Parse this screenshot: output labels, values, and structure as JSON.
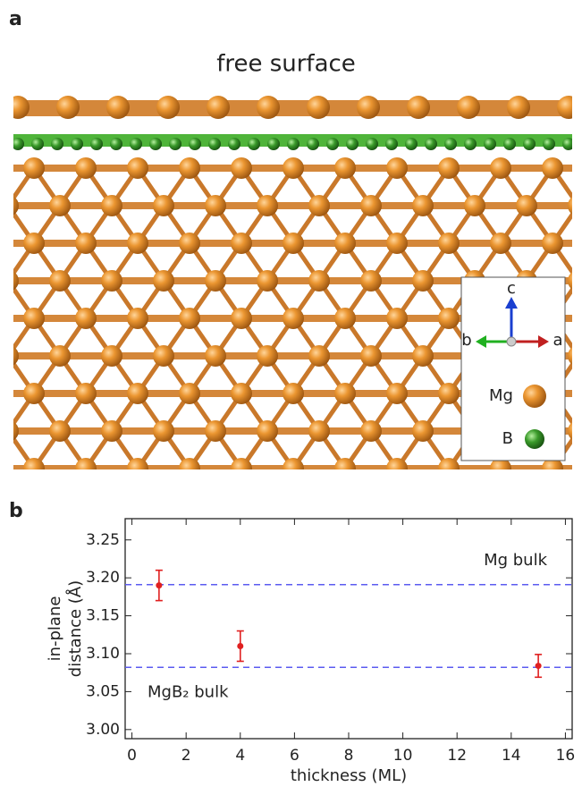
{
  "panel_a": {
    "label": "a",
    "title": "free surface",
    "axes": {
      "c": "c",
      "b": "b",
      "a": "a"
    },
    "legend": [
      {
        "name": "Mg",
        "color": "#e8902a"
      },
      {
        "name": "B",
        "color": "#3a9a2a"
      }
    ]
  },
  "chart_data": {
    "type": "scatter",
    "panel_label": "b",
    "xlabel": "thickness (ML)",
    "ylabel": [
      "in-plane",
      "distance (Å)"
    ],
    "xlim": [
      -0.25,
      16.25
    ],
    "ylim": [
      2.988,
      3.278
    ],
    "xticks": [
      0,
      2,
      4,
      6,
      8,
      10,
      12,
      14,
      16
    ],
    "yticks": [
      {
        "value": 3.0,
        "label": "3.00"
      },
      {
        "value": 3.05,
        "label": "3.05"
      },
      {
        "value": 3.1,
        "label": "3.10"
      },
      {
        "value": 3.15,
        "label": "3.15"
      },
      {
        "value": 3.2,
        "label": "3.20"
      },
      {
        "value": 3.25,
        "label": "3.25"
      }
    ],
    "series": [
      {
        "color": "#e02020",
        "x": [
          1,
          4,
          15
        ],
        "values": [
          3.19,
          3.11,
          3.084
        ],
        "errors": [
          0.02,
          0.02,
          0.015
        ]
      }
    ],
    "reference_lines": [
      {
        "value": 3.191,
        "label": "Mg bulk",
        "color": "#5b5bf0"
      },
      {
        "value": 3.082,
        "label": "MgB₂ bulk",
        "color": "#5b5bf0"
      }
    ]
  }
}
